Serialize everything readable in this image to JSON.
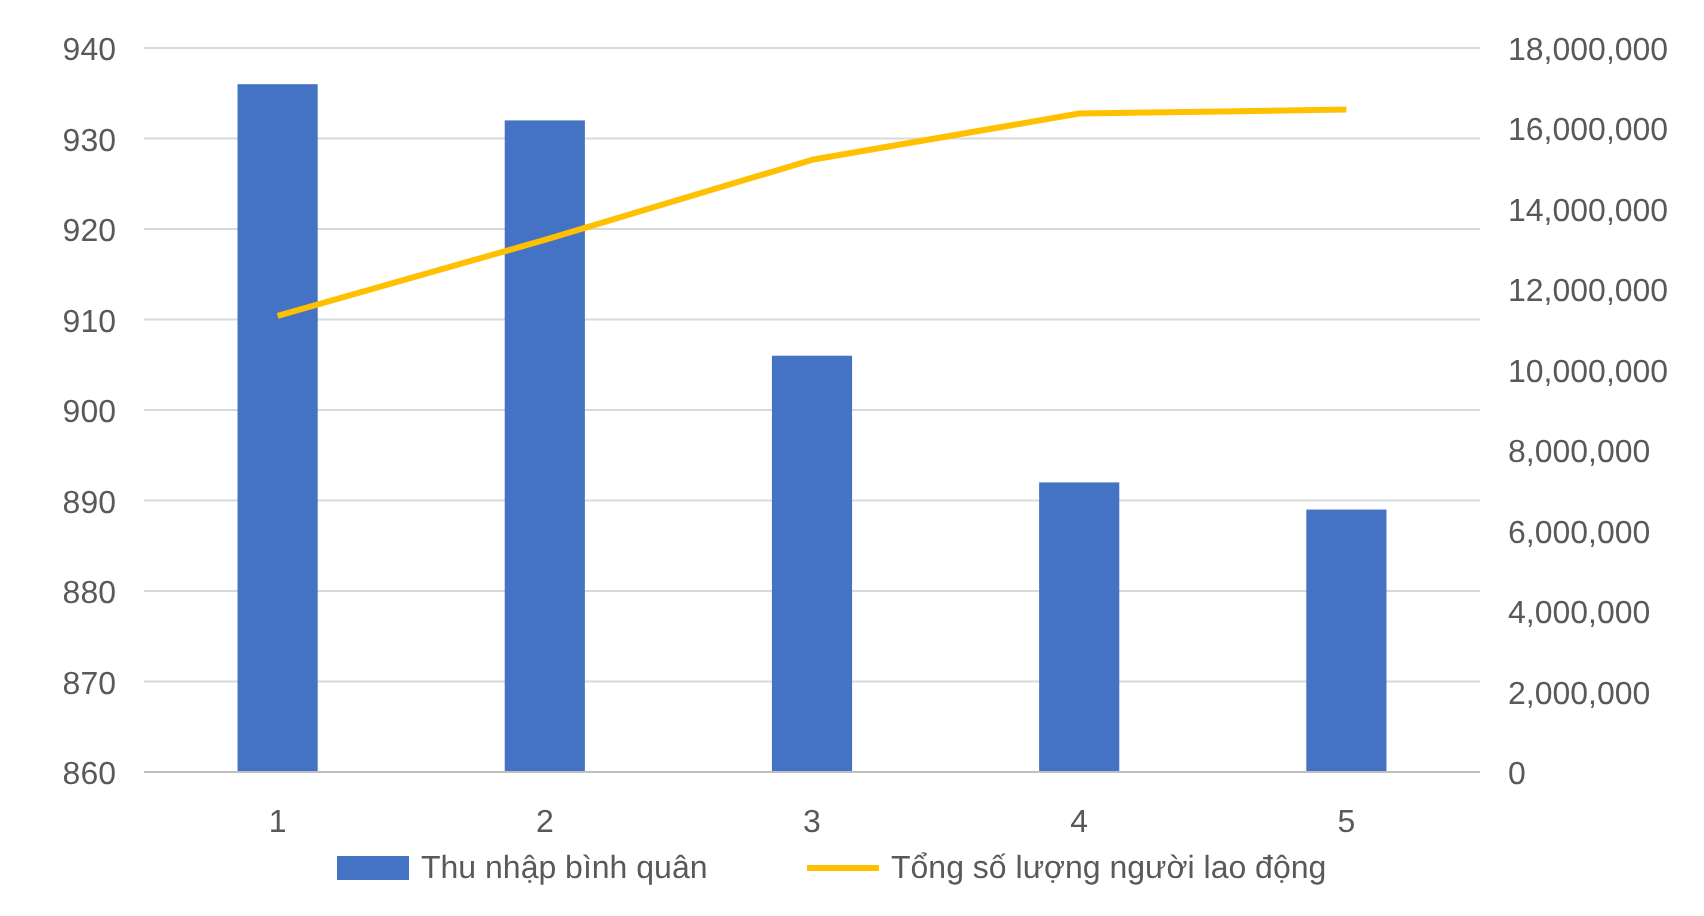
{
  "chart_data": {
    "type": "bar",
    "categories": [
      "1",
      "2",
      "3",
      "4",
      "5"
    ],
    "series": [
      {
        "name": "Thu nhập bình quân",
        "color": "#4472c4",
        "values": [
          936,
          932,
          906,
          892,
          889
        ]
      },
      {
        "name": "Tổng số lượng người lao động",
        "type": "line",
        "axis": "y2",
        "color": "#ffc000",
        "values": [
          11340000,
          13230000,
          15220000,
          16370000,
          16470000
        ]
      }
    ],
    "ylim": [
      860,
      940
    ],
    "yticks": [
      860,
      870,
      880,
      890,
      900,
      910,
      920,
      930,
      940
    ],
    "y2lim": [
      0,
      18000000
    ],
    "y2ticks": [
      0,
      {
        "value": 2000000,
        "label": "2,000,000"
      },
      {
        "value": 4000000,
        "label": "4,000,000"
      },
      {
        "value": 6000000,
        "label": "6,000,000"
      },
      {
        "value": 8000000,
        "label": "8,000,000"
      },
      {
        "value": 10000000,
        "label": "10,000,000"
      },
      {
        "value": 12000000,
        "label": "12,000,000"
      },
      {
        "value": 14000000,
        "label": "14,000,000"
      },
      {
        "value": 16000000,
        "label": "16,000,000"
      },
      {
        "value": 18000000,
        "label": "18,000,000"
      }
    ],
    "grid": "y",
    "legend": "bottom",
    "marker": "none",
    "line_style": "solid"
  }
}
